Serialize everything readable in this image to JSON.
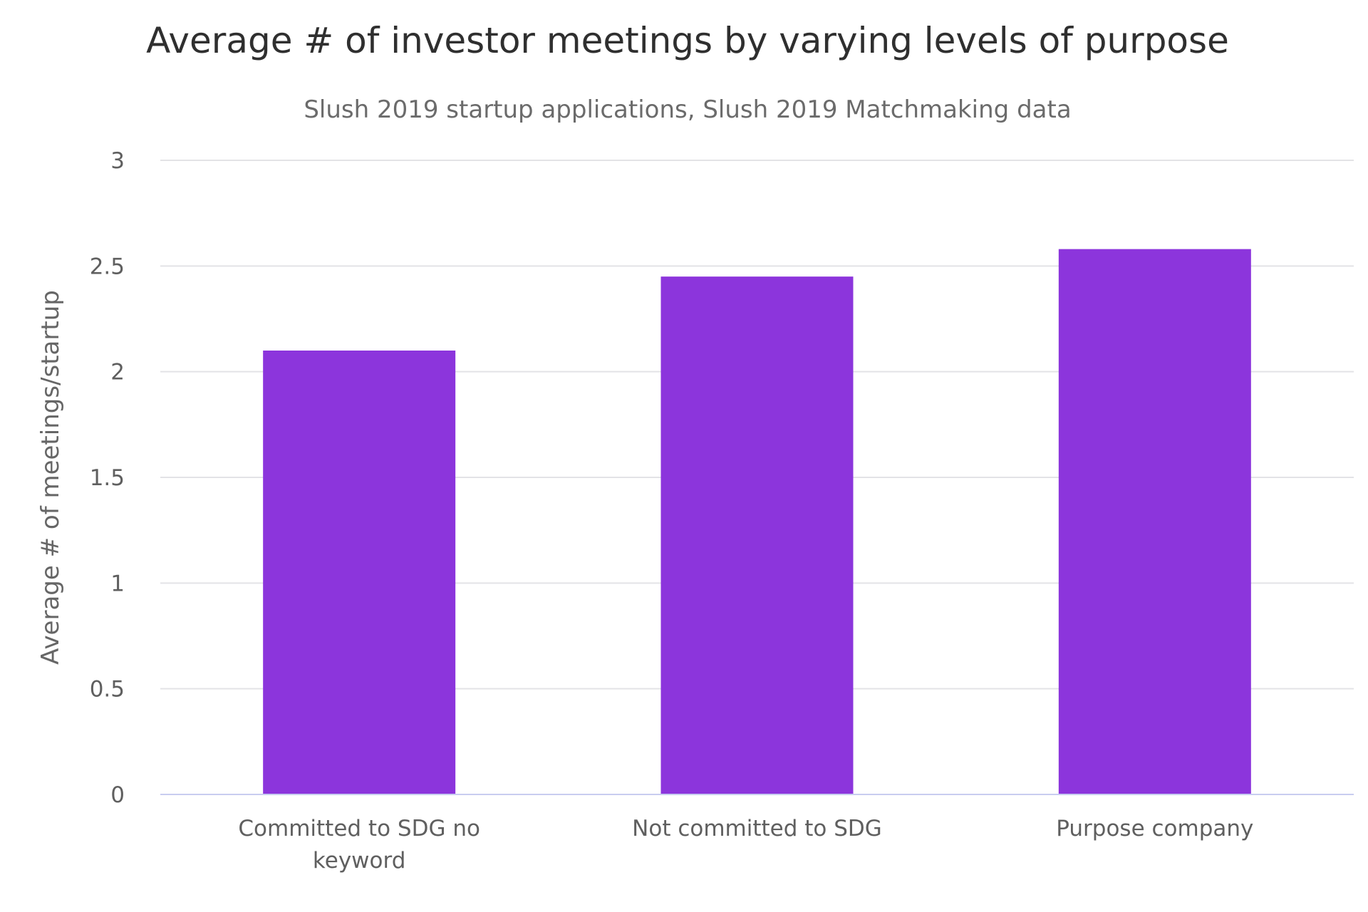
{
  "chart_data": {
    "type": "bar",
    "title": "Average # of investor meetings by varying levels of purpose",
    "subtitle": "Slush 2019 startup applications, Slush 2019 Matchmaking data",
    "xlabel": "",
    "ylabel": "Average # of meetings/startup",
    "categories": [
      "Committed to SDG no keyword",
      "Not committed to SDG",
      "Purpose company"
    ],
    "category_lines": [
      [
        "Committed to SDG no",
        "keyword"
      ],
      [
        "Not committed to SDG"
      ],
      [
        "Purpose company"
      ]
    ],
    "values": [
      2.1,
      2.45,
      2.58
    ],
    "ylim": [
      0,
      3
    ],
    "yticks": [
      0,
      0.5,
      1,
      1.5,
      2,
      2.5,
      3
    ],
    "ytick_labels": [
      "0",
      "0.5",
      "1",
      "1.5",
      "2",
      "2.5",
      "3"
    ],
    "grid": true,
    "legend": "none",
    "bar_color": "#8c35dc",
    "grid_color": "#e3e3e6",
    "baseline_color": "#c8cdf0"
  }
}
